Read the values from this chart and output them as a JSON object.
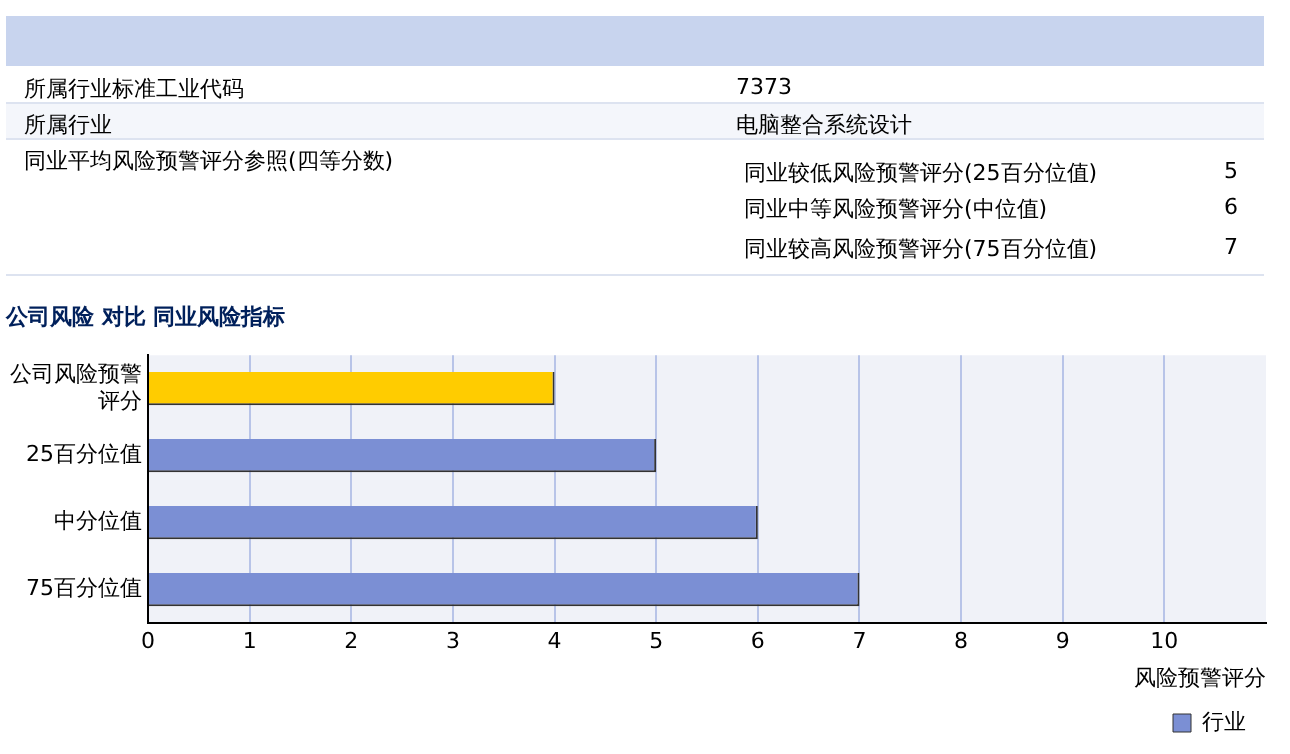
{
  "chart_data": {
    "type": "bar",
    "orientation": "horizontal",
    "title": "公司风险 对比 同业风险指标",
    "xlabel": "风险预警评分",
    "categories": [
      "公司风险预警评分",
      "25百分位值",
      "中分位值",
      "75百分位值"
    ],
    "series": [
      {
        "color": "#ffcc00",
        "values": [
          4,
          null,
          null,
          null
        ]
      },
      {
        "name": "行业",
        "color": "#7b8fd4",
        "values": [
          null,
          5,
          6,
          7
        ]
      }
    ],
    "xlim": [
      0,
      11
    ],
    "xticks": [
      0,
      1,
      2,
      3,
      4,
      5,
      6,
      7,
      8,
      9,
      10
    ],
    "grid": "x",
    "legend": "bottom right",
    "annotations": [
      "所属行业标准工业代码",
      "7373",
      "所属行业",
      "电脑整合系统设计",
      "同业平均风险预警评分参照(四等分数)",
      "同业较低风险预警评分(25百分位值)",
      "5",
      "同业中等风险预警评分(中位值)",
      "6",
      "同业较高风险预警评分(75百分位值)",
      "7"
    ]
  }
}
